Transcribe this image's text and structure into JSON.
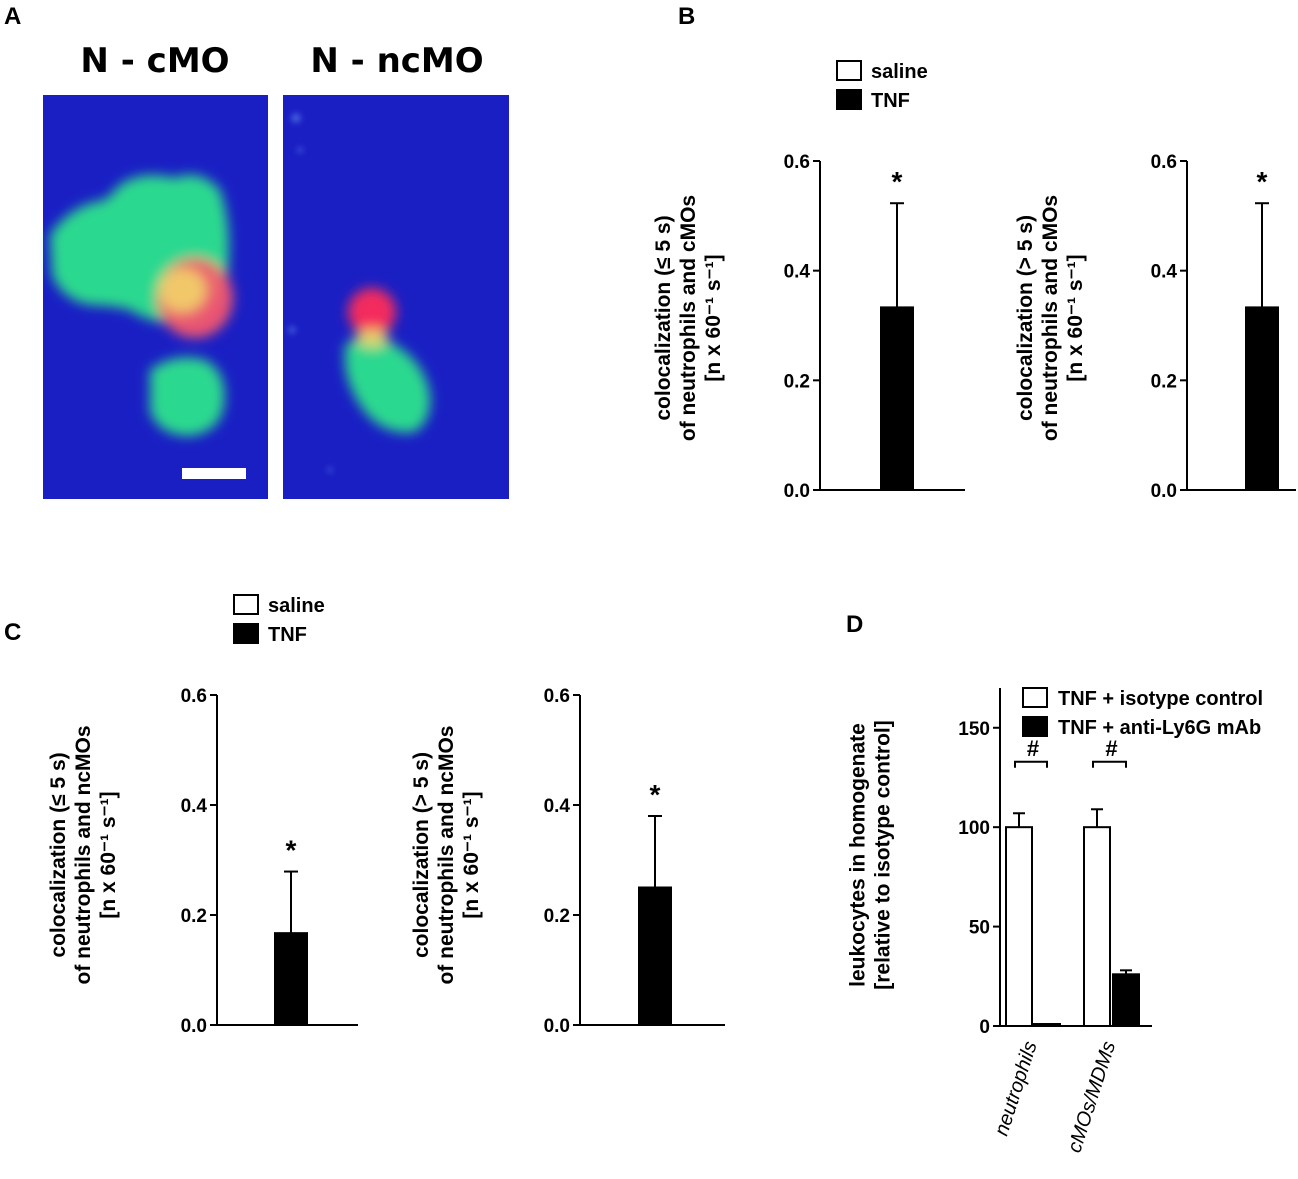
{
  "panels": {
    "A": {
      "letter": "A",
      "conditions": [
        "N - cMO",
        "N - ncMO"
      ],
      "colors": {
        "background": "#1a1fc4",
        "neutrophil": "#ff2a5a",
        "monocyte": "#2ee88a",
        "overlap": "#f2d86a",
        "scalebar": "#ffffff"
      }
    },
    "B": {
      "letter": "B"
    },
    "C": {
      "letter": "C"
    },
    "D": {
      "letter": "D"
    }
  },
  "legend_saline_tnf": [
    {
      "label": "saline",
      "fill": "#ffffff"
    },
    {
      "label": "TNF",
      "fill": "#000000"
    }
  ],
  "legend_isotype": [
    {
      "label": "TNF + isotype control",
      "fill": "#ffffff"
    },
    {
      "label": "TNF + anti-Ly6G mAb",
      "fill": "#000000"
    }
  ],
  "chart_data": [
    {
      "panel": "B",
      "type": "bar",
      "ylabel_lines": [
        "colocalization (≤ 5 s)",
        "of neutrophils and cMOs",
        "[n x 60⁻¹ s⁻¹]"
      ],
      "ylim": [
        0,
        0.6
      ],
      "yticks": [
        "0.0",
        "0.2",
        "0.4",
        "0.6"
      ],
      "series": [
        {
          "name": "saline",
          "value": 0.0,
          "error": 0.0
        },
        {
          "name": "TNF",
          "value": 0.333,
          "error": 0.19
        }
      ],
      "annotations": [
        {
          "text": "*",
          "series": "TNF"
        }
      ]
    },
    {
      "panel": "B",
      "type": "bar",
      "ylabel_lines": [
        "colocalization (> 5 s)",
        "of neutrophils and cMOs",
        "[n x 60⁻¹ s⁻¹]"
      ],
      "ylim": [
        0,
        0.6
      ],
      "yticks": [
        "0.0",
        "0.2",
        "0.4",
        "0.6"
      ],
      "series": [
        {
          "name": "saline",
          "value": 0.0,
          "error": 0.0
        },
        {
          "name": "TNF",
          "value": 0.333,
          "error": 0.19
        }
      ],
      "annotations": [
        {
          "text": "*",
          "series": "TNF"
        }
      ]
    },
    {
      "panel": "C",
      "type": "bar",
      "ylabel_lines": [
        "colocalization (≤ 5 s)",
        "of neutrophils and ncMOs",
        "[n x 60⁻¹ s⁻¹]"
      ],
      "ylim": [
        0,
        0.6
      ],
      "yticks": [
        "0.0",
        "0.2",
        "0.4",
        "0.6"
      ],
      "series": [
        {
          "name": "saline",
          "value": 0.0,
          "error": 0.0
        },
        {
          "name": "TNF",
          "value": 0.167,
          "error": 0.112
        }
      ],
      "annotations": [
        {
          "text": "*",
          "series": "TNF"
        }
      ]
    },
    {
      "panel": "C",
      "type": "bar",
      "ylabel_lines": [
        "colocalization (> 5 s)",
        "of neutrophils and ncMOs",
        "[n x 60⁻¹ s⁻¹]"
      ],
      "ylim": [
        0,
        0.6
      ],
      "yticks": [
        "0.0",
        "0.2",
        "0.4",
        "0.6"
      ],
      "series": [
        {
          "name": "saline",
          "value": 0.0,
          "error": 0.0
        },
        {
          "name": "TNF",
          "value": 0.25,
          "error": 0.13
        }
      ],
      "annotations": [
        {
          "text": "*",
          "series": "TNF"
        }
      ]
    },
    {
      "panel": "D",
      "type": "bar",
      "ylabel_lines": [
        "leukocytes in homogenate",
        "[relative to isotype control]"
      ],
      "ylim": [
        0,
        170
      ],
      "yticks": [
        "0",
        "50",
        "100",
        "150"
      ],
      "categories": [
        "neutrophils",
        "cMOs/MDMs"
      ],
      "series": [
        {
          "name": "TNF + isotype control",
          "values": [
            100,
            100
          ],
          "errors": [
            7,
            9
          ]
        },
        {
          "name": "TNF + anti-Ly6G mAb",
          "values": [
            1,
            26
          ],
          "errors": [
            0,
            2
          ]
        }
      ],
      "annotations": [
        {
          "text": "#",
          "category": "neutrophils"
        },
        {
          "text": "#",
          "category": "cMOs/MDMs"
        }
      ]
    }
  ]
}
